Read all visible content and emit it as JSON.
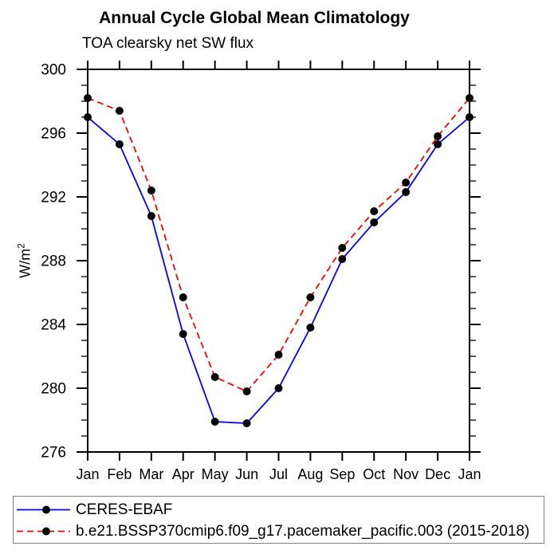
{
  "header": {
    "title": "Annual Cycle Global Mean Climatology",
    "subtitle": "TOA clearsky net SW flux"
  },
  "chart_data": {
    "type": "line",
    "x_categories": [
      "Jan",
      "Feb",
      "Mar",
      "Apr",
      "May",
      "Jun",
      "Jul",
      "Aug",
      "Sep",
      "Oct",
      "Nov",
      "Dec",
      "Jan"
    ],
    "series": [
      {
        "name": "CERES-EBAF",
        "color": "#0000ff",
        "line_style": "solid",
        "marker": "circle",
        "marker_color": "#000000",
        "values": [
          297.0,
          295.3,
          290.8,
          283.4,
          277.9,
          277.8,
          280.0,
          283.8,
          288.1,
          290.4,
          292.3,
          295.3,
          297.0
        ]
      },
      {
        "name": "b.e21.BSSP370cmip6.f09_g17.pacemaker_pacific.003 (2015-2018)",
        "color": "#ff0000",
        "line_style": "dashed",
        "marker": "circle",
        "marker_color": "#000000",
        "values": [
          298.2,
          297.4,
          292.4,
          285.7,
          280.7,
          279.8,
          282.1,
          285.7,
          288.8,
          291.1,
          292.9,
          295.8,
          298.2
        ]
      }
    ],
    "ylabel_base": "W/m",
    "ylabel_exp": "2",
    "ylim": [
      276,
      300
    ],
    "yticks": [
      276,
      280,
      284,
      288,
      292,
      296,
      300
    ],
    "ytick_minor_step": 1,
    "grid": "off",
    "legend_position": "bottom"
  },
  "style": {
    "axis_color": "#000000",
    "background": "#ffffff",
    "legend_border": "#808080"
  }
}
